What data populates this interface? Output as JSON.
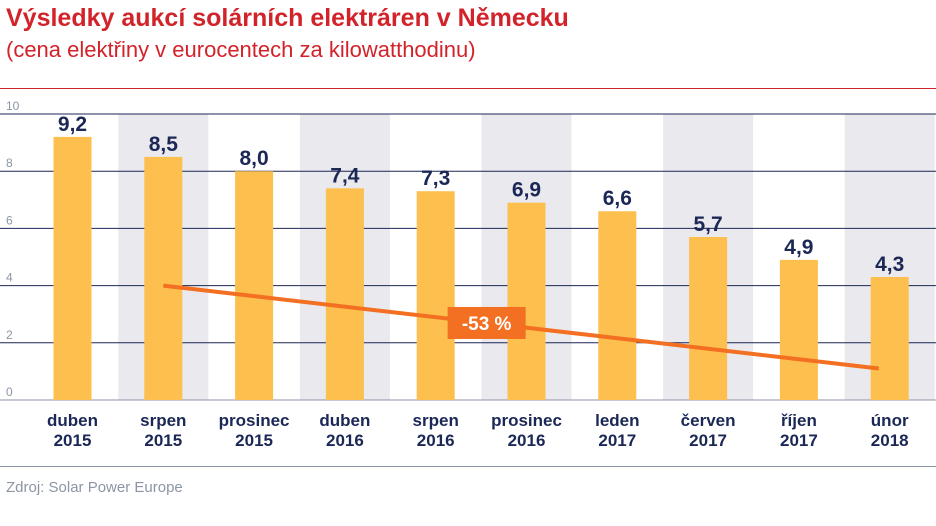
{
  "header": {
    "title": "Výsledky aukcí solárních elektráren v Německu",
    "subtitle": "(cena elektřiny v eurocentech za kilowatthodinu)"
  },
  "footer": {
    "source": "Zdroj: Solar Power Europe"
  },
  "colors": {
    "accent": "#d2232a",
    "bar": "#fdbf4d",
    "band": "#e9e9ee",
    "trend": "#f36f21",
    "text_dark": "#1b2755",
    "grid": "#1b2755",
    "muted": "#8b95a5"
  },
  "chart_data": {
    "type": "bar",
    "categories": [
      [
        "duben",
        "2015"
      ],
      [
        "srpen",
        "2015"
      ],
      [
        "prosinec",
        "2015"
      ],
      [
        "duben",
        "2016"
      ],
      [
        "srpen",
        "2016"
      ],
      [
        "prosinec",
        "2016"
      ],
      [
        "leden",
        "2017"
      ],
      [
        "červen",
        "2017"
      ],
      [
        "říjen",
        "2017"
      ],
      [
        "únor",
        "2018"
      ]
    ],
    "values": [
      9.2,
      8.5,
      8.0,
      7.4,
      7.3,
      6.9,
      6.6,
      5.7,
      4.9,
      4.3
    ],
    "value_labels": [
      "9,2",
      "8,5",
      "8,0",
      "7,4",
      "7,3",
      "6,9",
      "6,6",
      "5,7",
      "4,9",
      "4,3"
    ],
    "y_ticks": [
      0,
      2,
      4,
      6,
      8,
      10
    ],
    "ylim": [
      0,
      10
    ],
    "grid": true,
    "trend": {
      "label": "-53 %",
      "start_category_index": 1,
      "start_value": 4.0,
      "end_category_index": 8.88,
      "end_value": 1.1
    }
  }
}
